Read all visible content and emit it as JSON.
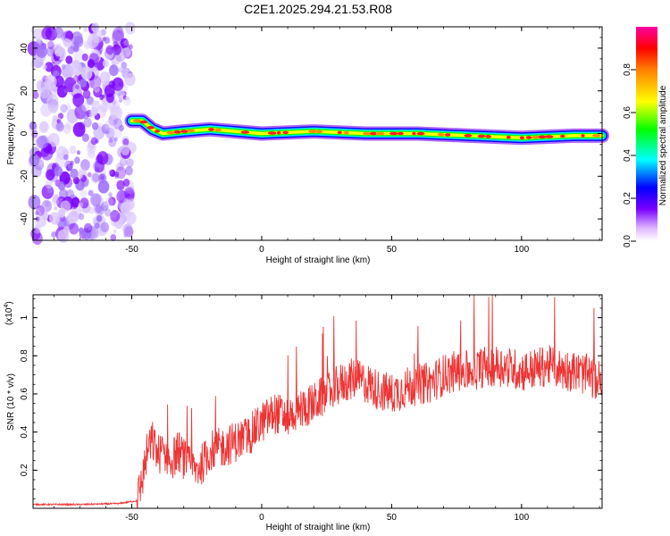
{
  "title": "C2E1.2025.294.21.53.R08",
  "chart_data": [
    {
      "type": "heatmap",
      "xlabel": "Height of straight line (km)",
      "ylabel": "Frequency (Hz)",
      "xlim": [
        -88,
        131
      ],
      "ylim": [
        -50,
        50
      ],
      "xticks": [
        -50,
        0,
        50,
        100
      ],
      "yticks": [
        40,
        20,
        0,
        -20,
        -40
      ],
      "grid": false,
      "noise_region_x": [
        -88,
        -50
      ],
      "signal_trace": {
        "x": [
          -50,
          -46,
          -42,
          -38,
          -30,
          -20,
          -10,
          0,
          20,
          40,
          60,
          80,
          100,
          120,
          131
        ],
        "y": [
          6,
          6,
          2,
          0,
          1,
          2,
          1,
          0,
          1,
          0,
          0,
          -1,
          -2,
          -1,
          -1
        ]
      },
      "colorbar": {
        "label": "Normalized spectral amplitude",
        "range": [
          0,
          1
        ],
        "ticks": [
          0.0,
          0.2,
          0.4,
          0.6,
          0.8
        ],
        "tick_labels": [
          "0.0",
          "0.2",
          "0.4",
          "0.6",
          "0.8"
        ]
      }
    },
    {
      "type": "line",
      "xlabel": "Height of straight line (km)",
      "ylabel": "SNR (10 * v/v)",
      "y_multiplier": "(x10",
      "y_multiplier_exp": "4",
      "xlim": [
        -88,
        131
      ],
      "ylim": [
        0.0,
        1.12
      ],
      "xticks": [
        -50,
        0,
        50,
        100
      ],
      "yticks": [
        0.2,
        0.4,
        0.6,
        0.8,
        1
      ],
      "grid": false,
      "color": "#ee3333",
      "series": [
        {
          "x": [
            -88,
            -70,
            -55,
            -48,
            -46,
            -44,
            -42,
            -40,
            -38,
            -35,
            -32,
            -28,
            -25,
            -22,
            -20,
            -15,
            -10,
            -5,
            0,
            5,
            10,
            15,
            20,
            25,
            30,
            35,
            40,
            45,
            50,
            55,
            60,
            65,
            70,
            75,
            80,
            85,
            90,
            95,
            100,
            105,
            110,
            115,
            120,
            125,
            128,
            131
          ],
          "y": [
            0.02,
            0.02,
            0.025,
            0.04,
            0.15,
            0.3,
            0.35,
            0.28,
            0.3,
            0.25,
            0.3,
            0.22,
            0.2,
            0.25,
            0.3,
            0.32,
            0.35,
            0.38,
            0.45,
            0.5,
            0.48,
            0.52,
            0.55,
            0.6,
            0.65,
            0.68,
            0.66,
            0.62,
            0.6,
            0.63,
            0.65,
            0.66,
            0.7,
            0.72,
            0.72,
            0.74,
            0.75,
            0.74,
            0.72,
            0.73,
            0.75,
            0.73,
            0.72,
            0.7,
            0.68,
            0.66
          ]
        }
      ]
    }
  ]
}
